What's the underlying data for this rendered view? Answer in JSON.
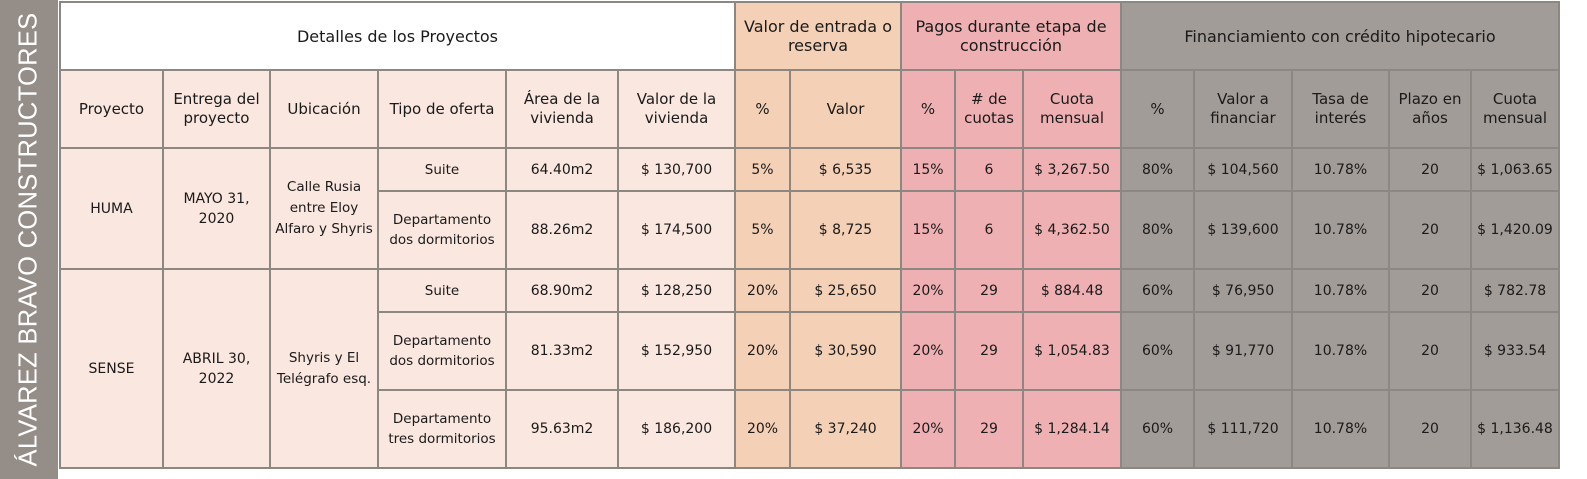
{
  "side_title": "ÁLVAREZ BRAVO CONSTRUCTORES",
  "groups": {
    "details": "Detalles de los Proyectos",
    "entry": "Valor de entrada o reserva",
    "payments": "Pagos durante etapa de construcción",
    "financing": "Financiamiento con crédito hipotecario"
  },
  "headers": {
    "proyecto": "Proyecto",
    "entrega": "Entrega del proyecto",
    "ubicacion": "Ubicación",
    "tipo": "Tipo de oferta",
    "area": "Área de la vivienda",
    "valor_vivienda": "Valor de la vivienda",
    "entry_pct": "%",
    "entry_valor": "Valor",
    "pay_pct": "%",
    "pay_cuotas": "# de cuotas",
    "pay_cuota": "Cuota mensual",
    "fin_pct": "%",
    "fin_valor": "Valor a financiar",
    "fin_tasa": "Tasa de interés",
    "fin_plazo": "Plazo en años",
    "fin_cuota": "Cuota mensual"
  },
  "projects": [
    {
      "name": "HUMA",
      "delivery": "MAYO 31, 2020",
      "location": "Calle Rusia entre Eloy Alfaro y Shyris",
      "rows": [
        {
          "tipo": "Suite",
          "area": "64.40m2",
          "valor": "$ 130,700",
          "e_pct": "5%",
          "e_val": "$ 6,535",
          "p_pct": "15%",
          "p_n": "6",
          "p_cuota": "$ 3,267.50",
          "f_pct": "80%",
          "f_val": "$ 104,560",
          "f_tasa": "10.78%",
          "f_plazo": "20",
          "f_cuota": "$ 1,063.65"
        },
        {
          "tipo": "Departamento dos dormitorios",
          "area": "88.26m2",
          "valor": "$ 174,500",
          "e_pct": "5%",
          "e_val": "$ 8,725",
          "p_pct": "15%",
          "p_n": "6",
          "p_cuota": "$ 4,362.50",
          "f_pct": "80%",
          "f_val": "$ 139,600",
          "f_tasa": "10.78%",
          "f_plazo": "20",
          "f_cuota": "$ 1,420.09"
        }
      ]
    },
    {
      "name": "SENSE",
      "delivery": "ABRIL 30, 2022",
      "location": "Shyris y El Telégrafo esq.",
      "rows": [
        {
          "tipo": "Suite",
          "area": "68.90m2",
          "valor": "$ 128,250",
          "e_pct": "20%",
          "e_val": "$ 25,650",
          "p_pct": "20%",
          "p_n": "29",
          "p_cuota": "$ 884.48",
          "f_pct": "60%",
          "f_val": "$ 76,950",
          "f_tasa": "10.78%",
          "f_plazo": "20",
          "f_cuota": "$ 782.78"
        },
        {
          "tipo": "Departamento dos dormitorios",
          "area": "81.33m2",
          "valor": "$ 152,950",
          "e_pct": "20%",
          "e_val": "$ 30,590",
          "p_pct": "20%",
          "p_n": "29",
          "p_cuota": "$ 1,054.83",
          "f_pct": "60%",
          "f_val": "$ 91,770",
          "f_tasa": "10.78%",
          "f_plazo": "20",
          "f_cuota": "$ 933.54"
        },
        {
          "tipo": "Departamento tres dormitorios",
          "area": "95.63m2",
          "valor": "$ 186,200",
          "e_pct": "20%",
          "e_val": "$ 37,240",
          "p_pct": "20%",
          "p_n": "29",
          "p_cuota": "$ 1,284.14",
          "f_pct": "60%",
          "f_val": "$ 111,720",
          "f_tasa": "10.78%",
          "f_plazo": "20",
          "f_cuota": "$ 1,136.48"
        }
      ]
    }
  ],
  "colors": {
    "details_bg": "#fae7df",
    "entry_bg": "#f4d0b7",
    "payments_bg": "#efb0b3",
    "financing_bg": "#a29c98",
    "side_bg": "#958e88",
    "border": "#8d8782"
  }
}
